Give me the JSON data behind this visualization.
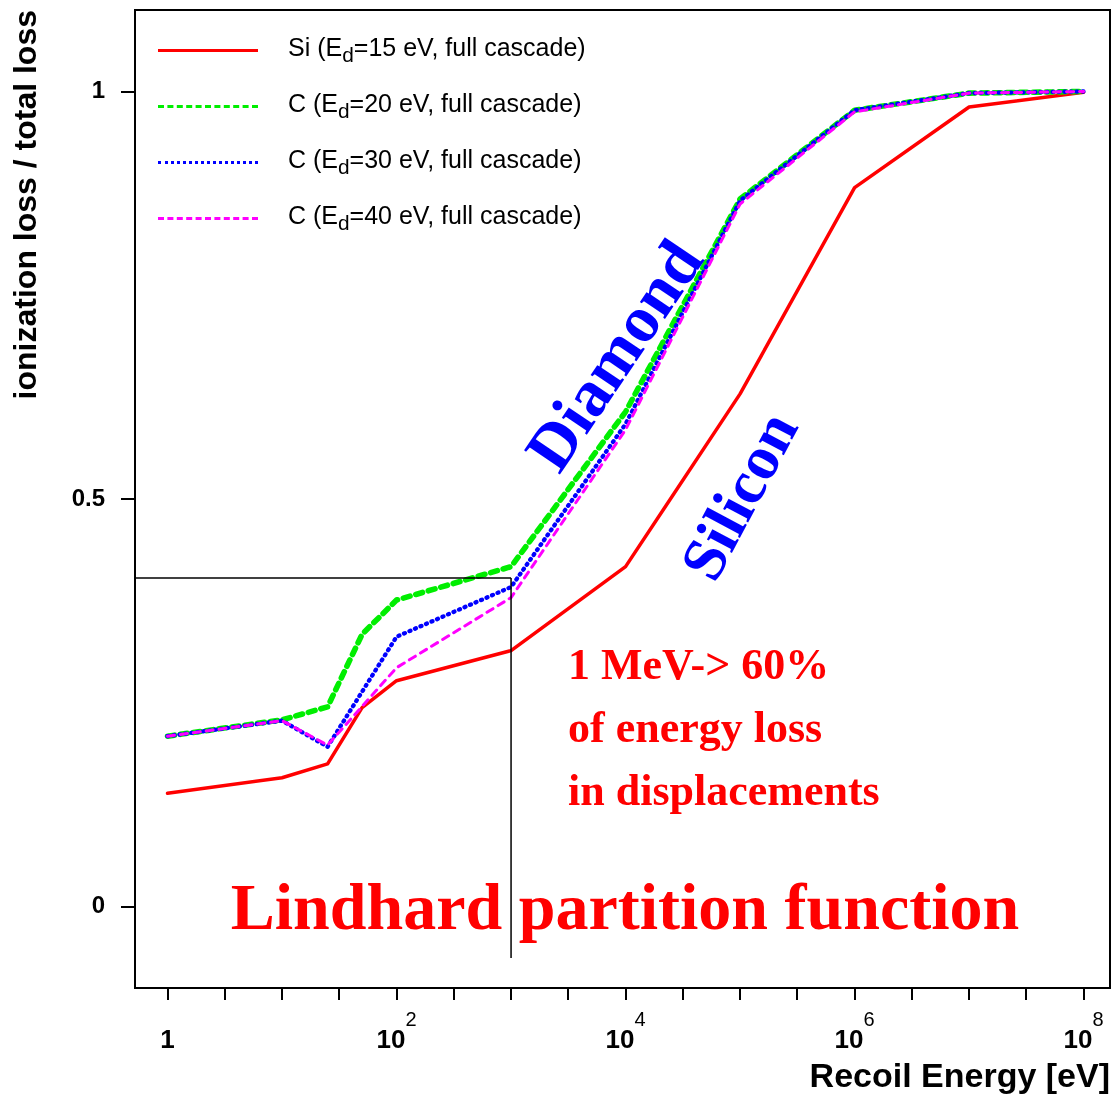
{
  "chart_data": {
    "type": "line",
    "xlabel": "Recoil Energy [eV]",
    "ylabel": "ionization loss / total loss",
    "log": "x",
    "xlim": [
      0.52,
      170000000
    ],
    "ylim": [
      -0.1,
      1.1
    ],
    "xticks": [
      {
        "value": 1,
        "label": "1"
      },
      {
        "value": 3.162,
        "label": null
      },
      {
        "value": 10,
        "label": null
      },
      {
        "value": 31.62,
        "label": null
      },
      {
        "value": 100,
        "label": "10$^{2}$"
      },
      {
        "value": 316.2,
        "label": null
      },
      {
        "value": 1000,
        "label": null
      },
      {
        "value": 3162,
        "label": null
      },
      {
        "value": 10000,
        "label": "10$^{4}$"
      },
      {
        "value": 31620,
        "label": null
      },
      {
        "value": 100000,
        "label": null
      },
      {
        "value": 316200,
        "label": null
      },
      {
        "value": 1000000,
        "label": "10$^{6}$"
      },
      {
        "value": 3162000,
        "label": null
      },
      {
        "value": 10000000,
        "label": null
      },
      {
        "value": 31620000,
        "label": null
      },
      {
        "value": 100000000,
        "label": "10$^{8}$"
      }
    ],
    "yticks": [
      0,
      0.5,
      1
    ],
    "grid": false,
    "legend": "top left",
    "marker": "none",
    "series": [
      {
        "name": "Si (E$_{d}$=15 eV, full cascade)",
        "color": "#ff0000",
        "line_style": "solid",
        "x": [
          1,
          10,
          25,
          50,
          100,
          1000,
          10000,
          100000,
          1000000,
          10000000,
          100000000
        ],
        "values": [
          0.139,
          0.158,
          0.175,
          0.244,
          0.277,
          0.314,
          0.417,
          0.629,
          0.882,
          0.981,
          0.999
        ]
      },
      {
        "name": "C (E$_{d}$=20 eV, full cascade)",
        "color": "#00ee00",
        "line_style": "dashed",
        "x": [
          1,
          10,
          25,
          50,
          100,
          1000,
          10000,
          100000,
          1000000,
          10000000,
          100000000
        ],
        "values": [
          0.209,
          0.229,
          0.245,
          0.334,
          0.376,
          0.417,
          0.607,
          0.868,
          0.977,
          0.998,
          1.0
        ]
      },
      {
        "name": "C (E$_{d}$=30 eV, full cascade)",
        "color": "#0000ff",
        "line_style": "dotted",
        "x": [
          1,
          10,
          25,
          100,
          1000,
          10000,
          100000,
          1000000,
          10000000,
          100000000
        ],
        "values": [
          0.209,
          0.228,
          0.196,
          0.331,
          0.392,
          0.592,
          0.866,
          0.977,
          0.998,
          1.0
        ]
      },
      {
        "name": "C (E$_{d}$=40 eV, full cascade)",
        "color": "#ff00ff",
        "line_style": "dashed",
        "x": [
          1,
          10,
          25,
          100,
          1000,
          10000,
          100000,
          1000000,
          10000000,
          100000000
        ],
        "values": [
          0.209,
          0.228,
          0.198,
          0.293,
          0.379,
          0.585,
          0.862,
          0.975,
          0.998,
          1.0
        ]
      }
    ],
    "ref_lines": [
      {
        "axis": "y",
        "value": 0.403,
        "color": "#000000"
      },
      {
        "axis": "x",
        "value": 1000,
        "color": "#000000"
      }
    ],
    "annotations": [
      "Diamond",
      "Silicon",
      "1 MeV-> 60%\nof energy loss\nin displacements",
      "Lindhard partition function"
    ]
  }
}
